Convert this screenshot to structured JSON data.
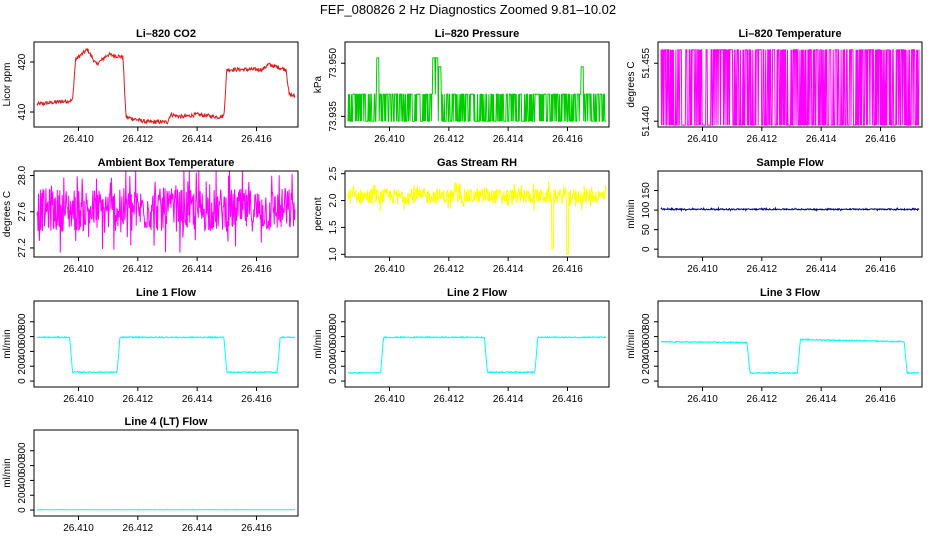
{
  "page": {
    "title": "FEF_080826  2 Hz Diagnostics Zoomed 9.81–10.02"
  },
  "chart_data": [
    {
      "type": "line",
      "title": "Li–820 CO2",
      "ylabel": "Licor ppm",
      "color": "#e41a1c",
      "xlim": [
        26.4085,
        26.4174
      ],
      "ylim": [
        407,
        424
      ],
      "yticks": [
        410,
        420
      ],
      "xticks": [
        "26.410",
        "26.412",
        "26.414",
        "26.416"
      ],
      "xtick_values": [
        26.41,
        26.412,
        26.414,
        26.416
      ],
      "pattern": {
        "kind": "segments",
        "points": [
          [
            26.4085,
            411.5
          ],
          [
            26.4098,
            412.3
          ],
          [
            26.4099,
            420.5
          ],
          [
            26.4103,
            422.5
          ],
          [
            26.4106,
            419.5
          ],
          [
            26.411,
            421.5
          ],
          [
            26.4115,
            421
          ],
          [
            26.4116,
            409
          ],
          [
            26.4123,
            408
          ],
          [
            26.413,
            408
          ],
          [
            26.4131,
            409.5
          ],
          [
            26.4135,
            409
          ],
          [
            26.414,
            409.5
          ],
          [
            26.4147,
            409
          ],
          [
            26.4149,
            409.2
          ],
          [
            26.415,
            418.5
          ],
          [
            26.4162,
            418.5
          ],
          [
            26.4164,
            419.5
          ],
          [
            26.417,
            418.5
          ],
          [
            26.4171,
            413.5
          ],
          [
            26.4174,
            413
          ]
        ],
        "noise": 0.4
      }
    },
    {
      "type": "line",
      "title": "Li–820 Pressure",
      "ylabel": "kPa",
      "color": "#00cc00",
      "xlim": [
        26.4085,
        26.4174
      ],
      "ylim": [
        73.932,
        73.956
      ],
      "yticks": [
        73.935,
        73.95
      ],
      "xticks": [
        "26.410",
        "26.412",
        "26.414",
        "26.416"
      ],
      "xtick_values": [
        26.41,
        26.412,
        26.414,
        26.416
      ],
      "ytick_labels": [
        "73.935",
        "73.950"
      ],
      "pattern": {
        "kind": "discrete",
        "levels": [
          73.9336,
          73.9413
        ],
        "spikes": [
          [
            26.4096,
            73.9515
          ],
          [
            26.4115,
            73.9515
          ],
          [
            26.4116,
            73.9515
          ],
          [
            26.4117,
            73.949
          ],
          [
            26.4165,
            73.949
          ]
        ]
      }
    },
    {
      "type": "line",
      "title": "Li–820 Temperature",
      "ylabel": "degrees C",
      "color": "#ff00ff",
      "xlim": [
        26.4085,
        26.4174
      ],
      "ylim": [
        51.4385,
        51.4605
      ],
      "yticks": [
        51.44,
        51.455
      ],
      "xticks": [
        "26.410",
        "26.412",
        "26.414",
        "26.416"
      ],
      "xtick_values": [
        26.41,
        26.412,
        26.414,
        26.416
      ],
      "ytick_labels": [
        "51.440",
        "51.455"
      ],
      "pattern": {
        "kind": "binary",
        "levels": [
          51.439,
          51.4585
        ]
      }
    },
    {
      "type": "line",
      "title": "Ambient Box Temperature",
      "ylabel": "degrees C",
      "color": "#ff00ff",
      "xlim": [
        26.4085,
        26.4174
      ],
      "ylim": [
        27.1,
        28.05
      ],
      "yticks": [
        27.2,
        27.6,
        28.0
      ],
      "xticks": [
        "26.410",
        "26.412",
        "26.414",
        "26.416"
      ],
      "xtick_values": [
        26.41,
        26.412,
        26.414,
        26.416
      ],
      "ytick_labels": [
        "27.2",
        "27.6",
        "28.0"
      ],
      "pattern": {
        "kind": "noise",
        "center": 27.62,
        "amp": 0.3
      }
    },
    {
      "type": "line",
      "title": "Gas Stream RH",
      "ylabel": "percent",
      "color": "#ffff00",
      "xlim": [
        26.4085,
        26.4174
      ],
      "ylim": [
        0.95,
        2.55
      ],
      "yticks": [
        1.0,
        1.5,
        2.0,
        2.5
      ],
      "xticks": [
        "26.410",
        "26.412",
        "26.414",
        "26.416"
      ],
      "xtick_values": [
        26.41,
        26.412,
        26.414,
        26.416
      ],
      "ytick_labels": [
        "1.0",
        "1.5",
        "2.0",
        "2.5"
      ],
      "pattern": {
        "kind": "noise",
        "center": 2.08,
        "amp": 0.18,
        "dips": [
          [
            26.4155,
            1.1
          ],
          [
            26.416,
            1.0
          ]
        ]
      }
    },
    {
      "type": "line",
      "title": "Sample Flow",
      "ylabel": "ml/min",
      "color": "#00008b",
      "xlim": [
        26.4085,
        26.4174
      ],
      "ylim": [
        -20,
        200
      ],
      "yticks": [
        0,
        50,
        100,
        150
      ],
      "xticks": [
        "26.410",
        "26.412",
        "26.414",
        "26.416"
      ],
      "xtick_values": [
        26.41,
        26.412,
        26.414,
        26.416
      ],
      "ytick_labels": [
        "0",
        "50",
        "100",
        "150"
      ],
      "pattern": {
        "kind": "noise",
        "center": 102,
        "amp": 2
      }
    },
    {
      "type": "line",
      "title": "Line 1 Flow",
      "ylabel": "ml/min",
      "color": "#00ffff",
      "xlim": [
        26.4085,
        26.4174
      ],
      "ylim": [
        -80,
        1080
      ],
      "yticks": [
        0,
        200,
        400,
        600,
        800
      ],
      "xticks": [
        "26.410",
        "26.412",
        "26.414",
        "26.416"
      ],
      "xtick_values": [
        26.41,
        26.412,
        26.414,
        26.416
      ],
      "ytick_labels": [
        "0",
        "200",
        "400",
        "600",
        "800"
      ],
      "pattern": {
        "kind": "segments",
        "points": [
          [
            26.4085,
            590
          ],
          [
            26.4097,
            590
          ],
          [
            26.4098,
            120
          ],
          [
            26.4113,
            120
          ],
          [
            26.4114,
            590
          ],
          [
            26.4149,
            590
          ],
          [
            26.415,
            120
          ],
          [
            26.4167,
            120
          ],
          [
            26.4168,
            590
          ],
          [
            26.4174,
            590
          ]
        ],
        "noise": 8
      }
    },
    {
      "type": "line",
      "title": "Line 2 Flow",
      "ylabel": "ml/min",
      "color": "#00ffff",
      "xlim": [
        26.4085,
        26.4174
      ],
      "ylim": [
        -80,
        1080
      ],
      "yticks": [
        0,
        200,
        400,
        600,
        800
      ],
      "xticks": [
        "26.410",
        "26.412",
        "26.414",
        "26.416"
      ],
      "xtick_values": [
        26.41,
        26.412,
        26.414,
        26.416
      ],
      "ytick_labels": [
        "0",
        "200",
        "400",
        "600",
        "800"
      ],
      "pattern": {
        "kind": "segments",
        "points": [
          [
            26.4085,
            110
          ],
          [
            26.4097,
            110
          ],
          [
            26.4098,
            590
          ],
          [
            26.4132,
            590
          ],
          [
            26.4133,
            120
          ],
          [
            26.4149,
            120
          ],
          [
            26.415,
            590
          ],
          [
            26.4174,
            590
          ]
        ],
        "noise": 8
      }
    },
    {
      "type": "line",
      "title": "Line 3 Flow",
      "ylabel": "ml/min",
      "color": "#00ffff",
      "xlim": [
        26.4085,
        26.4174
      ],
      "ylim": [
        -80,
        1080
      ],
      "yticks": [
        0,
        200,
        400,
        600,
        800
      ],
      "xticks": [
        "26.410",
        "26.412",
        "26.414",
        "26.416"
      ],
      "xtick_values": [
        26.41,
        26.412,
        26.414,
        26.416
      ],
      "ytick_labels": [
        "0",
        "200",
        "400",
        "600",
        "800"
      ],
      "pattern": {
        "kind": "segments",
        "points": [
          [
            26.4085,
            530
          ],
          [
            26.4115,
            520
          ],
          [
            26.4116,
            110
          ],
          [
            26.4132,
            110
          ],
          [
            26.4133,
            560
          ],
          [
            26.4168,
            530
          ],
          [
            26.4169,
            110
          ],
          [
            26.4174,
            110
          ]
        ],
        "noise": 8
      }
    },
    {
      "type": "line",
      "title": "Line 4 (LT) Flow",
      "ylabel": "ml/min",
      "color": "#00ffff",
      "xlim": [
        26.4085,
        26.4174
      ],
      "ylim": [
        -80,
        1080
      ],
      "yticks": [
        0,
        200,
        400,
        600,
        800
      ],
      "xticks": [
        "26.410",
        "26.412",
        "26.414",
        "26.416"
      ],
      "xtick_values": [
        26.41,
        26.412,
        26.414,
        26.416
      ],
      "ytick_labels": [
        "0",
        "200",
        "400",
        "600",
        "800"
      ],
      "pattern": {
        "kind": "noise",
        "center": 5,
        "amp": 3
      }
    }
  ]
}
